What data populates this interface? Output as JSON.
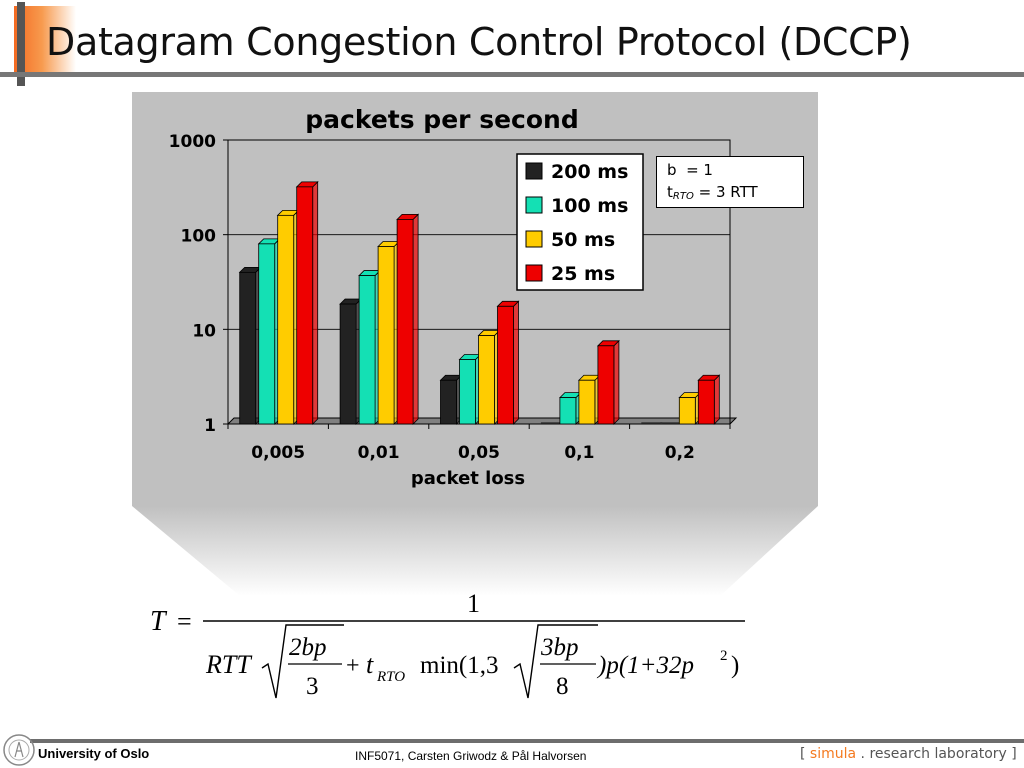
{
  "slide": {
    "title": "Datagram Congestion Control Protocol (DCCP)"
  },
  "params": {
    "b_label": "b",
    "b_value": "= 1",
    "t_label": "t",
    "t_subscript": "RTO",
    "t_value": "= 3 RTT"
  },
  "chart_data": {
    "type": "bar",
    "title": "packets per second",
    "xlabel": "packet loss",
    "ylabel": "",
    "yscale": "log",
    "ylim": [
      1,
      1000
    ],
    "yticks": [
      "1",
      "10",
      "100",
      "1000"
    ],
    "categories": [
      "0,005",
      "0,01",
      "0,05",
      "0,1",
      "0,2"
    ],
    "series": [
      {
        "name": "200 ms",
        "color": "#222222",
        "values": [
          40,
          18.5,
          2.9,
          1,
          1
        ]
      },
      {
        "name": "100 ms",
        "color": "#14e0b4",
        "values": [
          80,
          37,
          4.8,
          1.9,
          1
        ]
      },
      {
        "name": "50 ms",
        "color": "#ffcc00",
        "values": [
          160,
          75,
          8.6,
          2.9,
          1.9
        ]
      },
      {
        "name": "25 ms",
        "color": "#ee0000",
        "values": [
          320,
          145,
          17.5,
          6.7,
          2.9
        ]
      }
    ],
    "grid": true,
    "legend": "top-right"
  },
  "formula": {
    "lhs": "T",
    "eq": "=",
    "numerator": "1",
    "rtt": "RTT",
    "frac1_num": "2bp",
    "frac1_den": "3",
    "plus1": "+",
    "t": "t",
    "t_sub": "RTO",
    "min_open": "min(1,3",
    "frac2_num": "3bp",
    "frac2_den": "8",
    "tail_p": ")p(1+32p",
    "tail_exp": "2",
    "tail_close": ")"
  },
  "footer": {
    "university": "University of Oslo",
    "course": "INF5071, Carsten Griwodz & Pål Halvorsen",
    "lab_open": "[ ",
    "lab_simula": "simula",
    "lab_rest": " . research laboratory ]"
  }
}
